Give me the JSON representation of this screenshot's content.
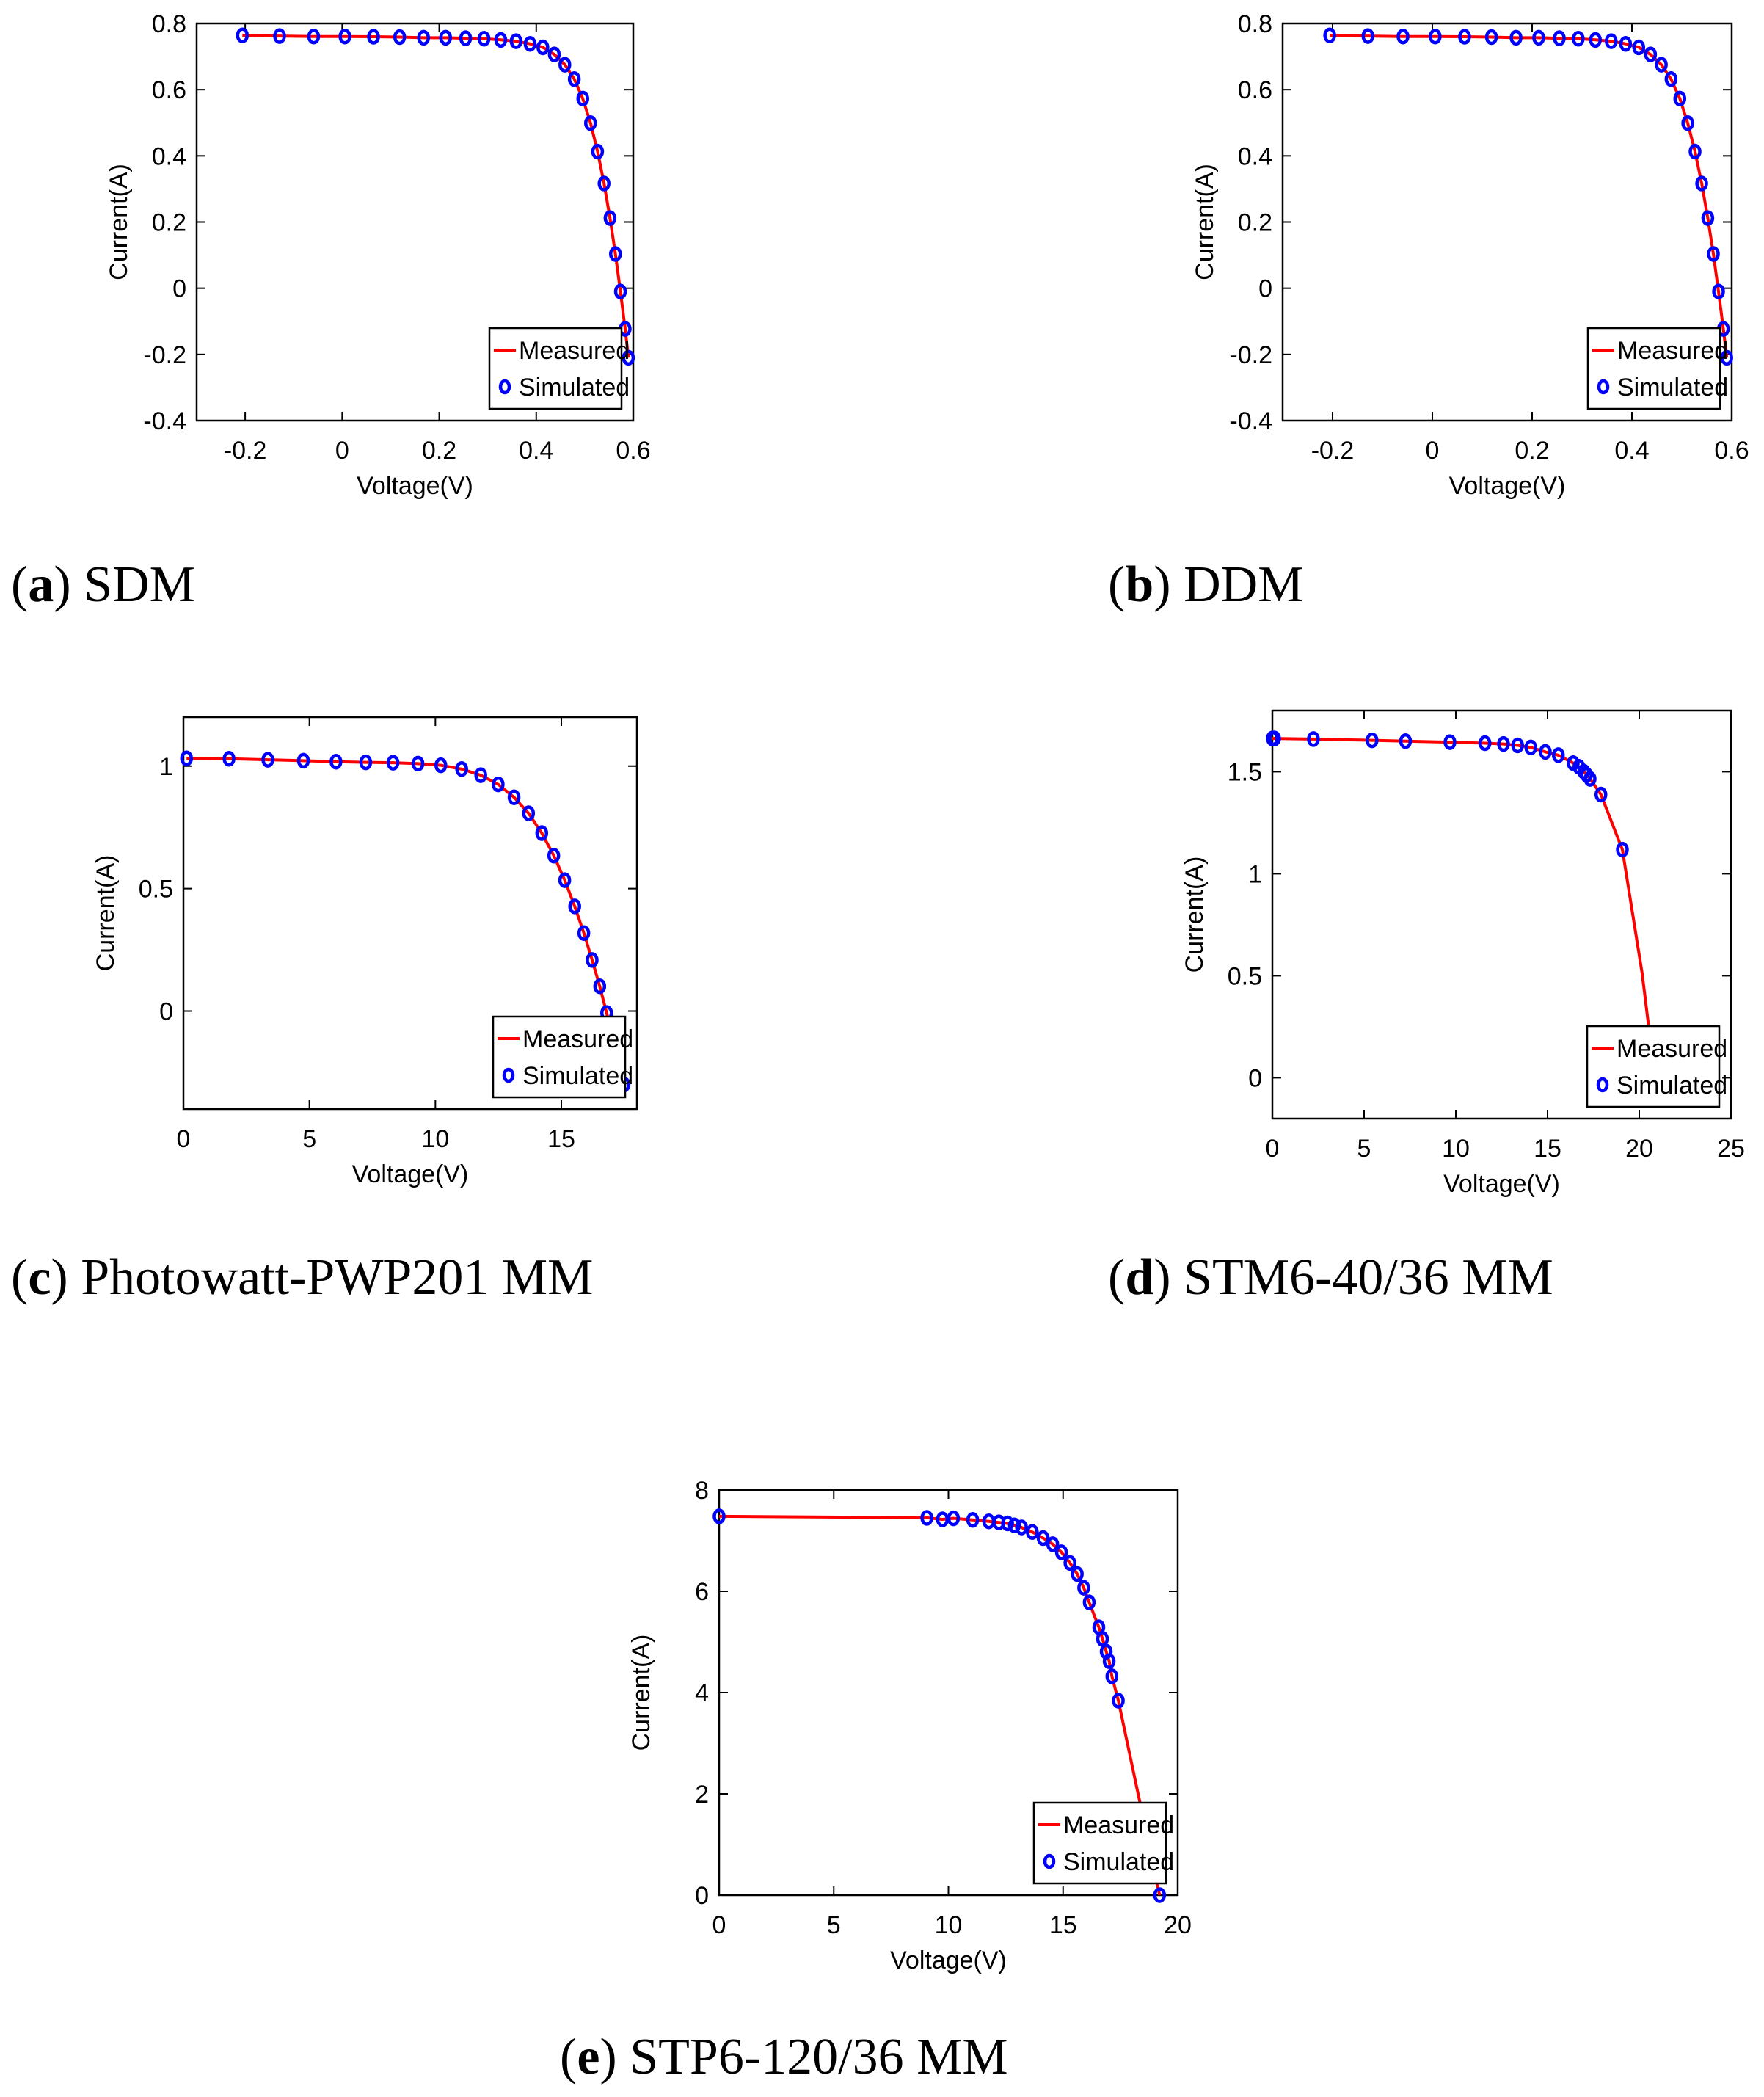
{
  "chart_data": [
    {
      "id": "a",
      "type": "line",
      "caption_letter": "a",
      "caption_text": "SDM",
      "xlabel": "Voltage(V)",
      "ylabel": "Current(A)",
      "xlim": [
        -0.3,
        0.6
      ],
      "ylim": [
        -0.4,
        0.8
      ],
      "xticks": [
        "-0.2",
        "0",
        "0.2",
        "0.4",
        "0.6"
      ],
      "xtick_values": [
        -0.2,
        0,
        0.2,
        0.4,
        0.6
      ],
      "yticks": [
        "-0.4",
        "-0.2",
        "0",
        "0.2",
        "0.4",
        "0.6",
        "0.8"
      ],
      "ytick_values": [
        -0.4,
        -0.2,
        0,
        0.2,
        0.4,
        0.6,
        0.8
      ],
      "legend": {
        "position": "bottom-right",
        "entries": [
          "Measured",
          "Simulated"
        ]
      },
      "series": [
        {
          "name": "Measured",
          "style": "line",
          "color": "#ff0000",
          "x": [
            -0.2057,
            -0.1291,
            -0.0588,
            0.0057,
            0.0646,
            0.1185,
            0.1678,
            0.2132,
            0.2545,
            0.2924,
            0.3269,
            0.3585,
            0.3873,
            0.4137,
            0.4373,
            0.459,
            0.4784,
            0.496,
            0.5119,
            0.5265,
            0.5398,
            0.5521,
            0.5633,
            0.5736,
            0.5833,
            0.59
          ],
          "y": [
            0.764,
            0.762,
            0.7605,
            0.7605,
            0.76,
            0.759,
            0.757,
            0.757,
            0.7555,
            0.754,
            0.7505,
            0.7465,
            0.7385,
            0.728,
            0.7065,
            0.6755,
            0.632,
            0.573,
            0.499,
            0.413,
            0.3165,
            0.212,
            0.1035,
            -0.01,
            -0.123,
            -0.21
          ]
        },
        {
          "name": "Simulated",
          "style": "marker",
          "color": "#0000ff",
          "x": [
            -0.2057,
            -0.1291,
            -0.0588,
            0.0057,
            0.0646,
            0.1185,
            0.1678,
            0.2132,
            0.2545,
            0.2924,
            0.3269,
            0.3585,
            0.3873,
            0.4137,
            0.4373,
            0.459,
            0.4784,
            0.496,
            0.5119,
            0.5265,
            0.5398,
            0.5521,
            0.5633,
            0.5736,
            0.5833,
            0.59
          ],
          "y": [
            0.764,
            0.762,
            0.7605,
            0.7605,
            0.76,
            0.759,
            0.757,
            0.757,
            0.7555,
            0.754,
            0.7505,
            0.7465,
            0.7385,
            0.728,
            0.7065,
            0.6755,
            0.632,
            0.573,
            0.499,
            0.413,
            0.3165,
            0.212,
            0.1035,
            -0.01,
            -0.123,
            -0.21
          ]
        }
      ]
    },
    {
      "id": "b",
      "type": "line",
      "caption_letter": "b",
      "caption_text": "DDM",
      "xlabel": "Voltage(V)",
      "ylabel": "Current(A)",
      "xlim": [
        -0.3,
        0.6
      ],
      "ylim": [
        -0.4,
        0.8
      ],
      "xticks": [
        "-0.2",
        "0",
        "0.2",
        "0.4",
        "0.6"
      ],
      "xtick_values": [
        -0.2,
        0,
        0.2,
        0.4,
        0.6
      ],
      "yticks": [
        "-0.4",
        "-0.2",
        "0",
        "0.2",
        "0.4",
        "0.6",
        "0.8"
      ],
      "ytick_values": [
        -0.4,
        -0.2,
        0,
        0.2,
        0.4,
        0.6,
        0.8
      ],
      "legend": {
        "position": "bottom-right",
        "entries": [
          "Measured",
          "Simulated"
        ]
      },
      "series": [
        {
          "name": "Measured",
          "style": "line",
          "color": "#ff0000",
          "x": [
            -0.2057,
            -0.1291,
            -0.0588,
            0.0057,
            0.0646,
            0.1185,
            0.1678,
            0.2132,
            0.2545,
            0.2924,
            0.3269,
            0.3585,
            0.3873,
            0.4137,
            0.4373,
            0.459,
            0.4784,
            0.496,
            0.5119,
            0.5265,
            0.5398,
            0.5521,
            0.5633,
            0.5736,
            0.5833,
            0.59
          ],
          "y": [
            0.764,
            0.762,
            0.7605,
            0.7605,
            0.76,
            0.759,
            0.757,
            0.757,
            0.7555,
            0.754,
            0.7505,
            0.7465,
            0.7385,
            0.728,
            0.7065,
            0.6755,
            0.632,
            0.573,
            0.499,
            0.413,
            0.3165,
            0.212,
            0.1035,
            -0.01,
            -0.123,
            -0.21
          ]
        },
        {
          "name": "Simulated",
          "style": "marker",
          "color": "#0000ff",
          "x": [
            -0.2057,
            -0.1291,
            -0.0588,
            0.0057,
            0.0646,
            0.1185,
            0.1678,
            0.2132,
            0.2545,
            0.2924,
            0.3269,
            0.3585,
            0.3873,
            0.4137,
            0.4373,
            0.459,
            0.4784,
            0.496,
            0.5119,
            0.5265,
            0.5398,
            0.5521,
            0.5633,
            0.5736,
            0.5833,
            0.59
          ],
          "y": [
            0.764,
            0.762,
            0.7605,
            0.7605,
            0.76,
            0.759,
            0.757,
            0.757,
            0.7555,
            0.754,
            0.7505,
            0.7465,
            0.7385,
            0.728,
            0.7065,
            0.6755,
            0.632,
            0.573,
            0.499,
            0.413,
            0.3165,
            0.212,
            0.1035,
            -0.01,
            -0.123,
            -0.21
          ]
        }
      ]
    },
    {
      "id": "c",
      "type": "line",
      "caption_letter": "c",
      "caption_text": "Photowatt-PWP201 MM",
      "xlabel": "Voltage(V)",
      "ylabel": "Current(A)",
      "xlim": [
        0,
        18
      ],
      "ylim": [
        -0.4,
        1.2
      ],
      "xticks": [
        "0",
        "5",
        "10",
        "15"
      ],
      "xtick_values": [
        0,
        5,
        10,
        15
      ],
      "yticks": [
        "0",
        "0.5",
        "1"
      ],
      "ytick_values": [
        0,
        0.5,
        1
      ],
      "legend": {
        "position": "bottom-right",
        "entries": [
          "Measured",
          "Simulated"
        ]
      },
      "series": [
        {
          "name": "Measured",
          "style": "line",
          "color": "#ff0000",
          "x": [
            0.1248,
            1.8093,
            3.3511,
            4.7622,
            6.0538,
            7.2364,
            8.3189,
            9.3097,
            10.2163,
            11.0449,
            11.8018,
            12.4929,
            13.1231,
            13.6983,
            14.2221,
            14.6995,
            15.1346,
            15.5311,
            15.8929,
            16.2229,
            16.5241,
            16.7987,
            17.0499,
            17.2793,
            17.4885
          ],
          "y": [
            1.0315,
            1.03,
            1.026,
            1.022,
            1.018,
            1.0155,
            1.014,
            1.01,
            1.0035,
            0.988,
            0.963,
            0.9255,
            0.8725,
            0.8075,
            0.7265,
            0.6345,
            0.5345,
            0.4275,
            0.3185,
            0.2085,
            0.101,
            -0.008,
            -0.111,
            -0.209,
            -0.3
          ]
        },
        {
          "name": "Simulated",
          "style": "marker",
          "color": "#0000ff",
          "x": [
            0.1248,
            1.8093,
            3.3511,
            4.7622,
            6.0538,
            7.2364,
            8.3189,
            9.3097,
            10.2163,
            11.0449,
            11.8018,
            12.4929,
            13.1231,
            13.6983,
            14.2221,
            14.6995,
            15.1346,
            15.5311,
            15.8929,
            16.2229,
            16.5241,
            16.7987,
            17.0499,
            17.2793,
            17.4885
          ],
          "y": [
            1.0315,
            1.03,
            1.026,
            1.022,
            1.018,
            1.0155,
            1.014,
            1.01,
            1.0035,
            0.988,
            0.963,
            0.9255,
            0.8725,
            0.8075,
            0.7265,
            0.6345,
            0.5345,
            0.4275,
            0.3185,
            0.2085,
            0.101,
            -0.008,
            -0.111,
            -0.209,
            -0.3
          ]
        }
      ]
    },
    {
      "id": "d",
      "type": "line",
      "caption_letter": "d",
      "caption_text": "STM6-40/36 MM",
      "xlabel": "Voltage(V)",
      "ylabel": "Current(A)",
      "xlim": [
        0,
        25
      ],
      "ylim": [
        -0.2,
        1.8
      ],
      "xticks": [
        "0",
        "5",
        "10",
        "15",
        "20",
        "25"
      ],
      "xtick_values": [
        0,
        5,
        10,
        15,
        20,
        25
      ],
      "yticks": [
        "0",
        "0.5",
        "1",
        "1.5"
      ],
      "ytick_values": [
        0,
        0.5,
        1,
        1.5
      ],
      "legend": {
        "position": "bottom-right",
        "entries": [
          "Measured",
          "Simulated"
        ]
      },
      "series": [
        {
          "name": "Measured",
          "style": "line",
          "color": "#ff0000",
          "x": [
            0,
            0.118,
            2.237,
            5.434,
            7.26,
            9.68,
            11.59,
            12.6,
            13.37,
            14.09,
            14.88,
            15.59,
            16.4,
            16.71,
            16.98,
            17.13,
            17.32,
            17.91,
            19.08,
            20.16,
            20.5
          ],
          "y": [
            1.663,
            1.663,
            1.66,
            1.654,
            1.65,
            1.645,
            1.64,
            1.636,
            1.629,
            1.619,
            1.597,
            1.581,
            1.542,
            1.524,
            1.5,
            1.485,
            1.465,
            1.388,
            1.118,
            0.51,
            0.26
          ]
        },
        {
          "name": "Simulated",
          "style": "marker",
          "color": "#0000ff",
          "x": [
            0,
            0.118,
            2.237,
            5.434,
            7.26,
            9.68,
            11.59,
            12.6,
            13.37,
            14.09,
            14.88,
            15.59,
            16.4,
            16.71,
            16.98,
            17.13,
            17.32,
            17.91,
            19.08
          ],
          "y": [
            1.663,
            1.663,
            1.66,
            1.654,
            1.65,
            1.645,
            1.64,
            1.636,
            1.629,
            1.619,
            1.597,
            1.581,
            1.542,
            1.524,
            1.5,
            1.485,
            1.465,
            1.388,
            1.118
          ]
        }
      ]
    },
    {
      "id": "e",
      "type": "line",
      "caption_letter": "e",
      "caption_text": "STP6-120/36 MM",
      "xlabel": "Voltage(V)",
      "ylabel": "Current(A)",
      "xlim": [
        0,
        20
      ],
      "ylim": [
        0,
        8
      ],
      "xticks": [
        "0",
        "5",
        "10",
        "15",
        "20"
      ],
      "xtick_values": [
        0,
        5,
        10,
        15,
        20
      ],
      "yticks": [
        "0",
        "2",
        "4",
        "6",
        "8"
      ],
      "ytick_values": [
        0,
        2,
        4,
        6,
        8
      ],
      "legend": {
        "position": "bottom-right",
        "entries": [
          "Measured",
          "Simulated"
        ]
      },
      "series": [
        {
          "name": "Measured",
          "style": "line",
          "color": "#ff0000",
          "x": [
            0,
            9.06,
            9.74,
            10.22,
            11.06,
            11.76,
            12.2,
            12.58,
            12.88,
            13.19,
            13.66,
            14.13,
            14.55,
            14.93,
            15.3,
            15.62,
            15.9,
            16.14,
            16.56,
            16.72,
            16.88,
            17.01,
            17.13,
            17.41,
            19.21
          ],
          "y": [
            7.48,
            7.45,
            7.42,
            7.44,
            7.41,
            7.38,
            7.36,
            7.34,
            7.3,
            7.26,
            7.17,
            7.05,
            6.93,
            6.77,
            6.56,
            6.34,
            6.07,
            5.78,
            5.29,
            5.06,
            4.81,
            4.62,
            4.32,
            3.84,
            0
          ]
        },
        {
          "name": "Simulated",
          "style": "marker",
          "color": "#0000ff",
          "x": [
            0,
            9.06,
            9.74,
            10.22,
            11.06,
            11.76,
            12.2,
            12.58,
            12.88,
            13.19,
            13.66,
            14.13,
            14.55,
            14.93,
            15.3,
            15.62,
            15.9,
            16.14,
            16.56,
            16.72,
            16.88,
            17.01,
            17.13,
            17.41,
            19.21
          ],
          "y": [
            7.48,
            7.45,
            7.42,
            7.44,
            7.41,
            7.38,
            7.36,
            7.34,
            7.3,
            7.26,
            7.17,
            7.05,
            6.93,
            6.77,
            6.56,
            6.34,
            6.07,
            5.78,
            5.29,
            5.06,
            4.81,
            4.62,
            4.32,
            3.84,
            0
          ]
        }
      ]
    }
  ]
}
